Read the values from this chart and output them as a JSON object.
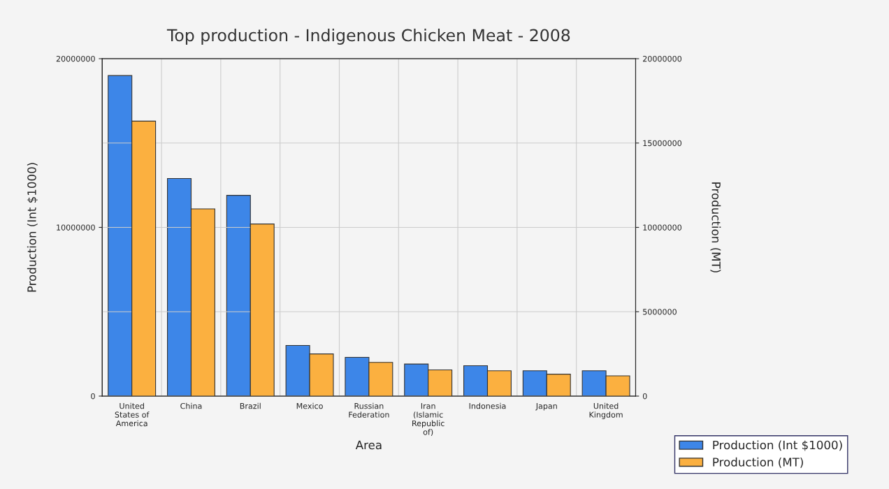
{
  "chart_data": {
    "type": "bar",
    "title": "Top production - Indigenous Chicken Meat - 2008",
    "xlabel": "Area",
    "ylabel": "Production (Int $1000)",
    "y2label": "Production (MT)",
    "categories": [
      "United\nStates of\nAmerica",
      "China",
      "Brazil",
      "Mexico",
      "Russian\nFederation",
      "Iran\n(Islamic\nRepublic\nof)",
      "Indonesia",
      "Japan",
      "United\nKingdom"
    ],
    "series": [
      {
        "name": "Production (Int $1000)",
        "color": "#3d86e8",
        "values": [
          19000000,
          12900000,
          11900000,
          3000000,
          2300000,
          1900000,
          1800000,
          1500000,
          1500000
        ]
      },
      {
        "name": "Production (MT)",
        "color": "#fbb040",
        "axis": "y2",
        "values": [
          16300000,
          11100000,
          10200000,
          2500000,
          2000000,
          1550000,
          1500000,
          1300000,
          1200000
        ]
      }
    ],
    "ylim": [
      0,
      20000000
    ],
    "yticks": [
      0,
      10000000,
      20000000
    ],
    "y2lim": [
      0,
      20000000
    ],
    "y2ticks": [
      0,
      5000000,
      10000000,
      15000000,
      20000000
    ],
    "grid": true,
    "legend": "bottom right"
  }
}
